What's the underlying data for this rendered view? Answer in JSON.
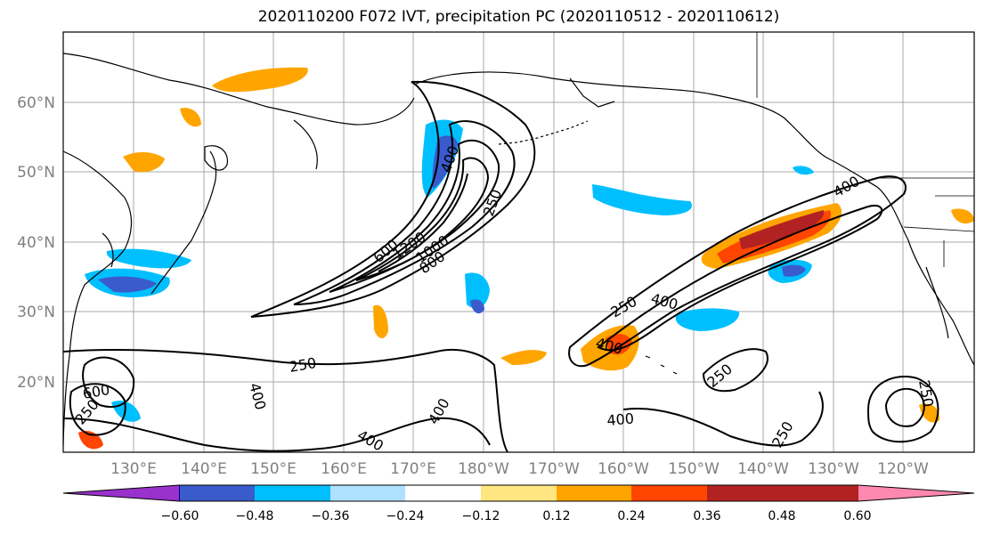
{
  "title": "2020110200 F072 IVT, precipitation PC (2020110512 - 2020110612)",
  "lat_labels": [
    "60°N",
    "50°N",
    "40°N",
    "30°N",
    "20°N"
  ],
  "lon_labels": [
    "130°E",
    "140°E",
    "150°E",
    "160°E",
    "170°E",
    "180°W",
    "170°W",
    "160°W",
    "150°W",
    "140°W",
    "130°W",
    "120°W"
  ],
  "contour_labels": [
    "250",
    "400",
    "600",
    "1200",
    "1000",
    "800",
    "250",
    "400",
    "250",
    "400",
    "400",
    "400",
    "250",
    "400",
    "250",
    "400",
    "250",
    "600",
    "400",
    "250"
  ],
  "colorbar": {
    "ticks": [
      "−0.60",
      "−0.48",
      "−0.36",
      "−0.24",
      "−0.12",
      "0.12",
      "0.24",
      "0.36",
      "0.48",
      "0.60"
    ],
    "colors": [
      "#9932cc",
      "#000080",
      "#3a5bcc",
      "#00bfff",
      "#b0e0ff",
      "#ffffff",
      "#ffe680",
      "#ffa500",
      "#ff4500",
      "#b22222",
      "#ff88b0"
    ]
  },
  "colors": {
    "positive_low": "#ffe680",
    "positive_mid": "#ffa500",
    "positive_high": "#ff4500",
    "positive_max": "#b22222",
    "negative_low": "#b0e0ff",
    "negative_mid": "#00bfff",
    "negative_high": "#3a5bcc",
    "negative_max": "#000080"
  }
}
